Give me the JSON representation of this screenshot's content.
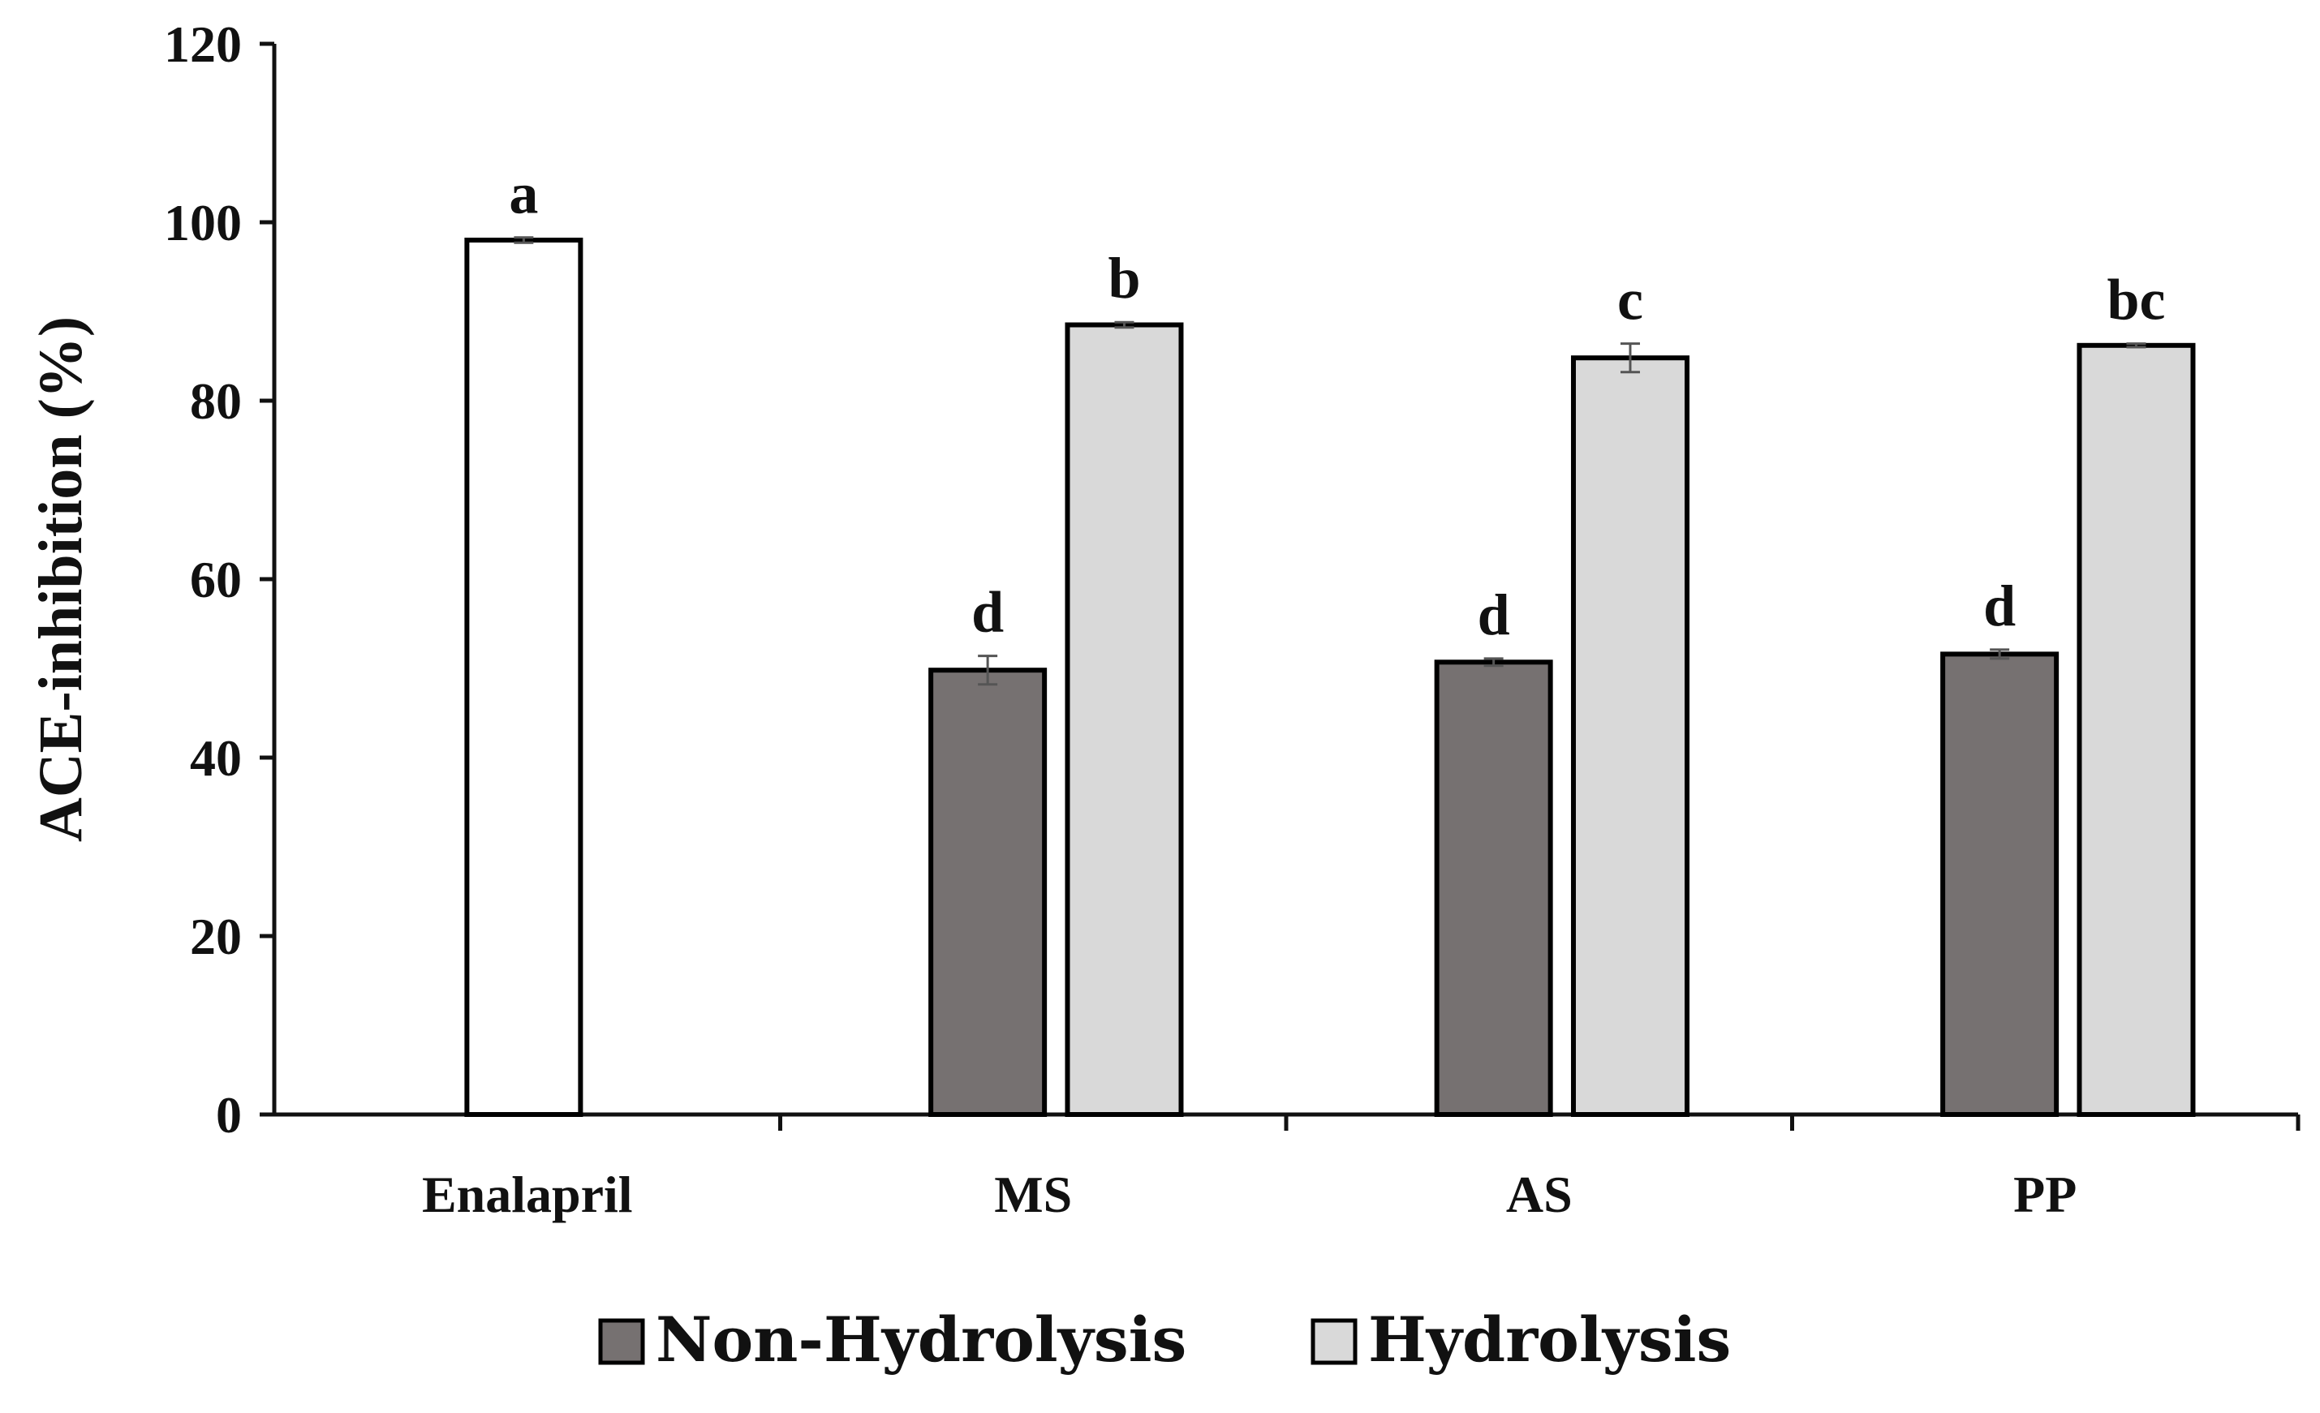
{
  "chart_data": {
    "type": "bar",
    "ylabel": "ACE-inhibition (%)",
    "xlabel": "",
    "ylim": [
      0,
      120
    ],
    "yticks": [
      0,
      20,
      40,
      60,
      80,
      100,
      120
    ],
    "grid": false,
    "legend_position": "bottom",
    "categories": [
      "Enalapril",
      "MS",
      "AS",
      "PP"
    ],
    "series": [
      {
        "name": "Enalapril",
        "color": "#ffffff",
        "values": [
          98,
          null,
          null,
          null
        ],
        "errors": [
          0.3,
          null,
          null,
          null
        ],
        "labels": [
          "a",
          null,
          null,
          null
        ]
      },
      {
        "name": "Non-Hydrolysis",
        "color": "#767171",
        "values": [
          null,
          49.8,
          50.7,
          51.6
        ],
        "errors": [
          null,
          1.6,
          0.4,
          0.5
        ],
        "labels": [
          null,
          "d",
          "d",
          "d"
        ]
      },
      {
        "name": "Hydrolysis",
        "color": "#d9d9d9",
        "values": [
          null,
          88.5,
          84.8,
          86.2
        ],
        "errors": [
          null,
          0.3,
          1.6,
          0.2
        ],
        "labels": [
          null,
          "b",
          "c",
          "bc"
        ]
      }
    ],
    "legend": [
      {
        "label": "Non-Hydrolysis",
        "color": "#767171"
      },
      {
        "label": "Hydrolysis",
        "color": "#d9d9d9"
      }
    ]
  }
}
